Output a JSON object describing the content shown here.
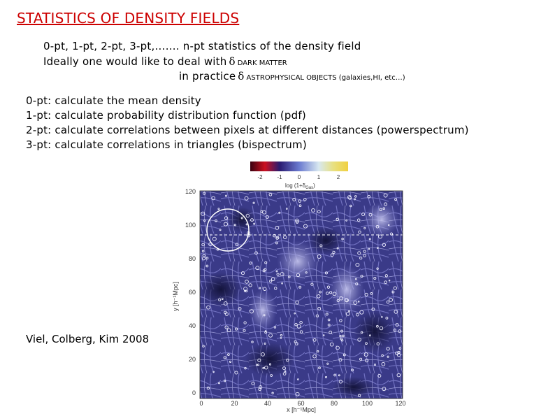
{
  "title": "STATISTICS OF DENSITY FIELDS",
  "intro": {
    "line1": "0-pt, 1-pt, 2-pt, 3-pt,……. n-pt statistics of the density field",
    "line2_prefix": "Ideally one would like to deal with",
    "line2_delta": "δ",
    "line2_suffix": "DARK MATTER",
    "line3_prefix": "in practice",
    "line3_delta": "δ",
    "line3_suffix": "ASTROPHYSICAL OBJECTS (galaxies,HI, etc…)"
  },
  "statistics": [
    "0-pt: calculate the mean density",
    "1-pt: calculate probability distribution function (pdf)",
    "2-pt: calculate correlations between pixels at different distances (powerspectrum)",
    "3-pt: calculate correlations in triangles (bispectrum)"
  ],
  "credit": "Viel, Colberg, Kim 2008",
  "figure": {
    "colorbar": {
      "ticks": [
        "-2",
        "-1",
        "0",
        "1",
        "2"
      ],
      "label": "log (1+δ",
      "label_sub": "Gas",
      "label_end": ")"
    },
    "y_axis": {
      "label": "y [h⁻¹Mpc]",
      "ticks": [
        "120",
        "100",
        "80",
        "60",
        "40",
        "20",
        "0"
      ]
    },
    "x_axis": {
      "label": "x [h⁻¹Mpc]",
      "ticks": [
        "0",
        "20",
        "40",
        "60",
        "80",
        "100",
        "120"
      ]
    },
    "colors": {
      "field_dark": "#1a1a4a",
      "field_mid": "#3c3c8c",
      "field_light": "#8080c8",
      "filament": "#b8b8e8",
      "halo": "#f0f0ff",
      "circle": "#ffffff"
    }
  }
}
